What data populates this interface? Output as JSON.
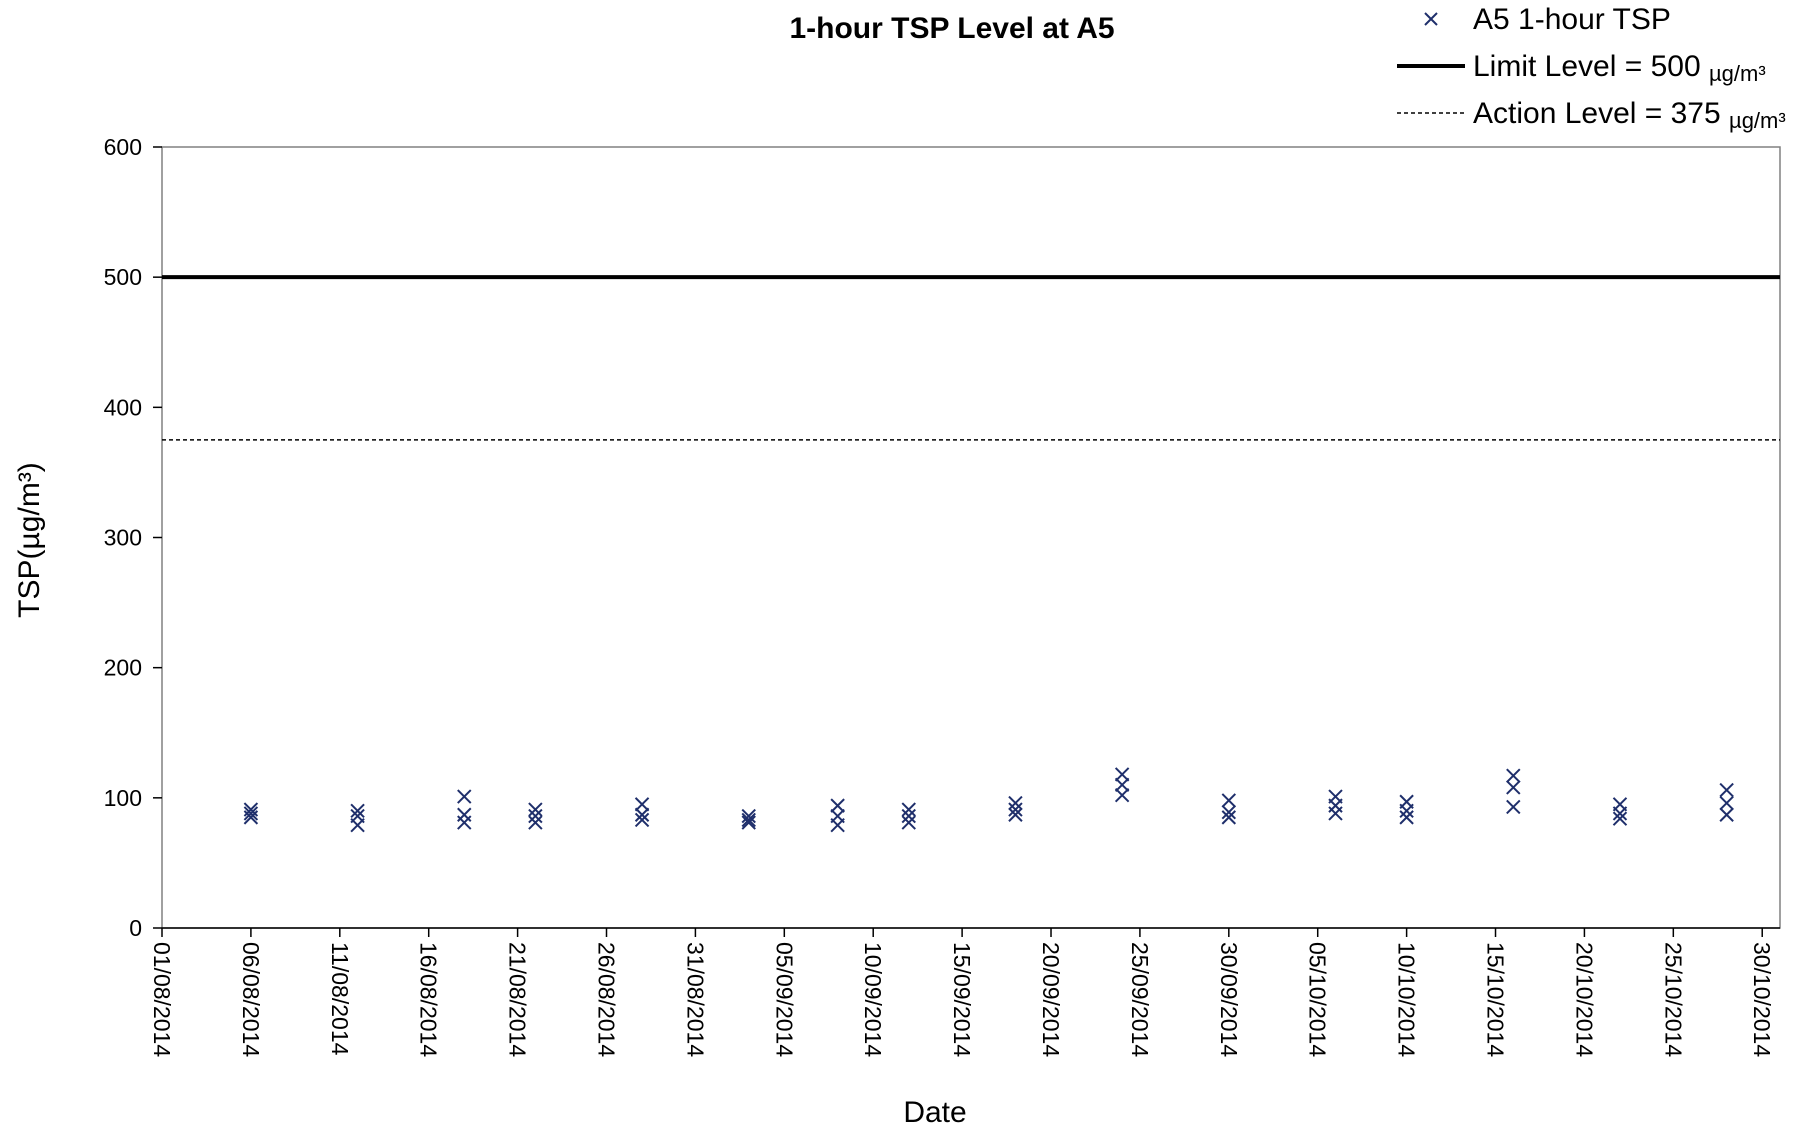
{
  "chart_data": {
    "type": "scatter",
    "title": "1-hour TSP Level at A5",
    "xlabel": "Date",
    "ylabel": "TSP(µg/m³)",
    "ylim": [
      0,
      600
    ],
    "yticks": [
      0,
      100,
      200,
      300,
      400,
      500,
      600
    ],
    "xlim": [
      "01/08/2014",
      "31/10/2014"
    ],
    "xtick_labels": [
      "01/08/2014",
      "06/08/2014",
      "11/08/2014",
      "16/08/2014",
      "21/08/2014",
      "26/08/2014",
      "31/08/2014",
      "05/09/2014",
      "10/09/2014",
      "15/09/2014",
      "20/09/2014",
      "25/09/2014",
      "30/09/2014",
      "05/10/2014",
      "10/10/2014",
      "15/10/2014",
      "20/10/2014",
      "25/10/2014",
      "30/10/2014"
    ],
    "grid": false,
    "legend_position": "top-right",
    "series": [
      {
        "name": "A5 1-hour TSP",
        "marker": "x",
        "color": "#1f2f6b",
        "points": [
          {
            "x": "06/08/2014",
            "y": 91
          },
          {
            "x": "06/08/2014",
            "y": 88
          },
          {
            "x": "06/08/2014",
            "y": 85
          },
          {
            "x": "12/08/2014",
            "y": 90
          },
          {
            "x": "12/08/2014",
            "y": 86
          },
          {
            "x": "12/08/2014",
            "y": 79
          },
          {
            "x": "18/08/2014",
            "y": 101
          },
          {
            "x": "18/08/2014",
            "y": 87
          },
          {
            "x": "18/08/2014",
            "y": 81
          },
          {
            "x": "22/08/2014",
            "y": 91
          },
          {
            "x": "22/08/2014",
            "y": 86
          },
          {
            "x": "22/08/2014",
            "y": 81
          },
          {
            "x": "28/08/2014",
            "y": 95
          },
          {
            "x": "28/08/2014",
            "y": 87
          },
          {
            "x": "28/08/2014",
            "y": 83
          },
          {
            "x": "03/09/2014",
            "y": 86
          },
          {
            "x": "03/09/2014",
            "y": 83
          },
          {
            "x": "03/09/2014",
            "y": 81
          },
          {
            "x": "08/09/2014",
            "y": 94
          },
          {
            "x": "08/09/2014",
            "y": 86
          },
          {
            "x": "08/09/2014",
            "y": 79
          },
          {
            "x": "12/09/2014",
            "y": 91
          },
          {
            "x": "12/09/2014",
            "y": 86
          },
          {
            "x": "12/09/2014",
            "y": 81
          },
          {
            "x": "18/09/2014",
            "y": 96
          },
          {
            "x": "18/09/2014",
            "y": 91
          },
          {
            "x": "18/09/2014",
            "y": 87
          },
          {
            "x": "24/09/2014",
            "y": 118
          },
          {
            "x": "24/09/2014",
            "y": 110
          },
          {
            "x": "24/09/2014",
            "y": 102
          },
          {
            "x": "30/09/2014",
            "y": 98
          },
          {
            "x": "30/09/2014",
            "y": 89
          },
          {
            "x": "30/09/2014",
            "y": 85
          },
          {
            "x": "06/10/2014",
            "y": 101
          },
          {
            "x": "06/10/2014",
            "y": 94
          },
          {
            "x": "06/10/2014",
            "y": 88
          },
          {
            "x": "10/10/2014",
            "y": 97
          },
          {
            "x": "10/10/2014",
            "y": 90
          },
          {
            "x": "10/10/2014",
            "y": 85
          },
          {
            "x": "16/10/2014",
            "y": 117
          },
          {
            "x": "16/10/2014",
            "y": 108
          },
          {
            "x": "16/10/2014",
            "y": 93
          },
          {
            "x": "22/10/2014",
            "y": 95
          },
          {
            "x": "22/10/2014",
            "y": 88
          },
          {
            "x": "22/10/2014",
            "y": 84
          },
          {
            "x": "28/10/2014",
            "y": 106
          },
          {
            "x": "28/10/2014",
            "y": 96
          },
          {
            "x": "28/10/2014",
            "y": 87
          }
        ]
      },
      {
        "name": "Limit Level = 500",
        "unit": "µg/m³",
        "type": "hline",
        "y": 500,
        "style": "solid",
        "color": "#000000"
      },
      {
        "name": "Action Level = 375",
        "unit": "µg/m³",
        "type": "hline",
        "y": 375,
        "style": "dashed",
        "color": "#000000"
      }
    ]
  }
}
